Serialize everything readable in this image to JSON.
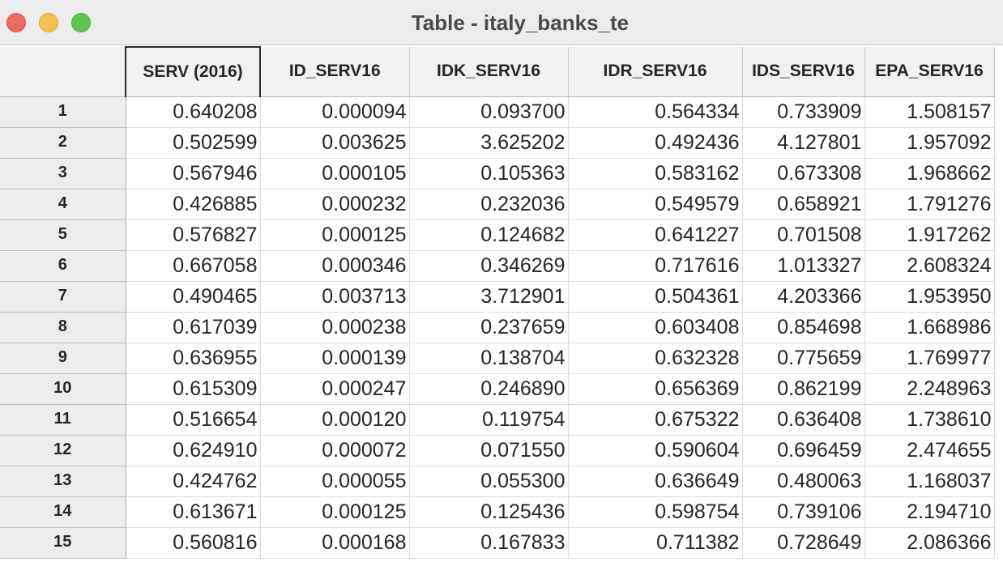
{
  "window": {
    "title": "Table - italy_banks_te"
  },
  "table": {
    "columns": [
      "SERV (2016)",
      "ID_SERV16",
      "IDK_SERV16",
      "IDR_SERV16",
      "IDS_SERV16",
      "EPA_SERV16"
    ],
    "selected_column": "SERV (2016)",
    "rows": [
      {
        "id": "1",
        "cells": [
          "0.640208",
          "0.000094",
          "0.093700",
          "0.564334",
          "0.733909",
          "1.508157"
        ]
      },
      {
        "id": "2",
        "cells": [
          "0.502599",
          "0.003625",
          "3.625202",
          "0.492436",
          "4.127801",
          "1.957092"
        ]
      },
      {
        "id": "3",
        "cells": [
          "0.567946",
          "0.000105",
          "0.105363",
          "0.583162",
          "0.673308",
          "1.968662"
        ]
      },
      {
        "id": "4",
        "cells": [
          "0.426885",
          "0.000232",
          "0.232036",
          "0.549579",
          "0.658921",
          "1.791276"
        ]
      },
      {
        "id": "5",
        "cells": [
          "0.576827",
          "0.000125",
          "0.124682",
          "0.641227",
          "0.701508",
          "1.917262"
        ]
      },
      {
        "id": "6",
        "cells": [
          "0.667058",
          "0.000346",
          "0.346269",
          "0.717616",
          "1.013327",
          "2.608324"
        ]
      },
      {
        "id": "7",
        "cells": [
          "0.490465",
          "0.003713",
          "3.712901",
          "0.504361",
          "4.203366",
          "1.953950"
        ]
      },
      {
        "id": "8",
        "cells": [
          "0.617039",
          "0.000238",
          "0.237659",
          "0.603408",
          "0.854698",
          "1.668986"
        ]
      },
      {
        "id": "9",
        "cells": [
          "0.636955",
          "0.000139",
          "0.138704",
          "0.632328",
          "0.775659",
          "1.769977"
        ]
      },
      {
        "id": "10",
        "cells": [
          "0.615309",
          "0.000247",
          "0.246890",
          "0.656369",
          "0.862199",
          "2.248963"
        ]
      },
      {
        "id": "11",
        "cells": [
          "0.516654",
          "0.000120",
          "0.119754",
          "0.675322",
          "0.636408",
          "1.738610"
        ]
      },
      {
        "id": "12",
        "cells": [
          "0.624910",
          "0.000072",
          "0.071550",
          "0.590604",
          "0.696459",
          "2.474655"
        ]
      },
      {
        "id": "13",
        "cells": [
          "0.424762",
          "0.000055",
          "0.055300",
          "0.636649",
          "0.480063",
          "1.168037"
        ]
      },
      {
        "id": "14",
        "cells": [
          "0.613671",
          "0.000125",
          "0.125436",
          "0.598754",
          "0.739106",
          "2.194710"
        ]
      },
      {
        "id": "15",
        "cells": [
          "0.560816",
          "0.000168",
          "0.167833",
          "0.711382",
          "0.728649",
          "2.086366"
        ]
      }
    ]
  }
}
